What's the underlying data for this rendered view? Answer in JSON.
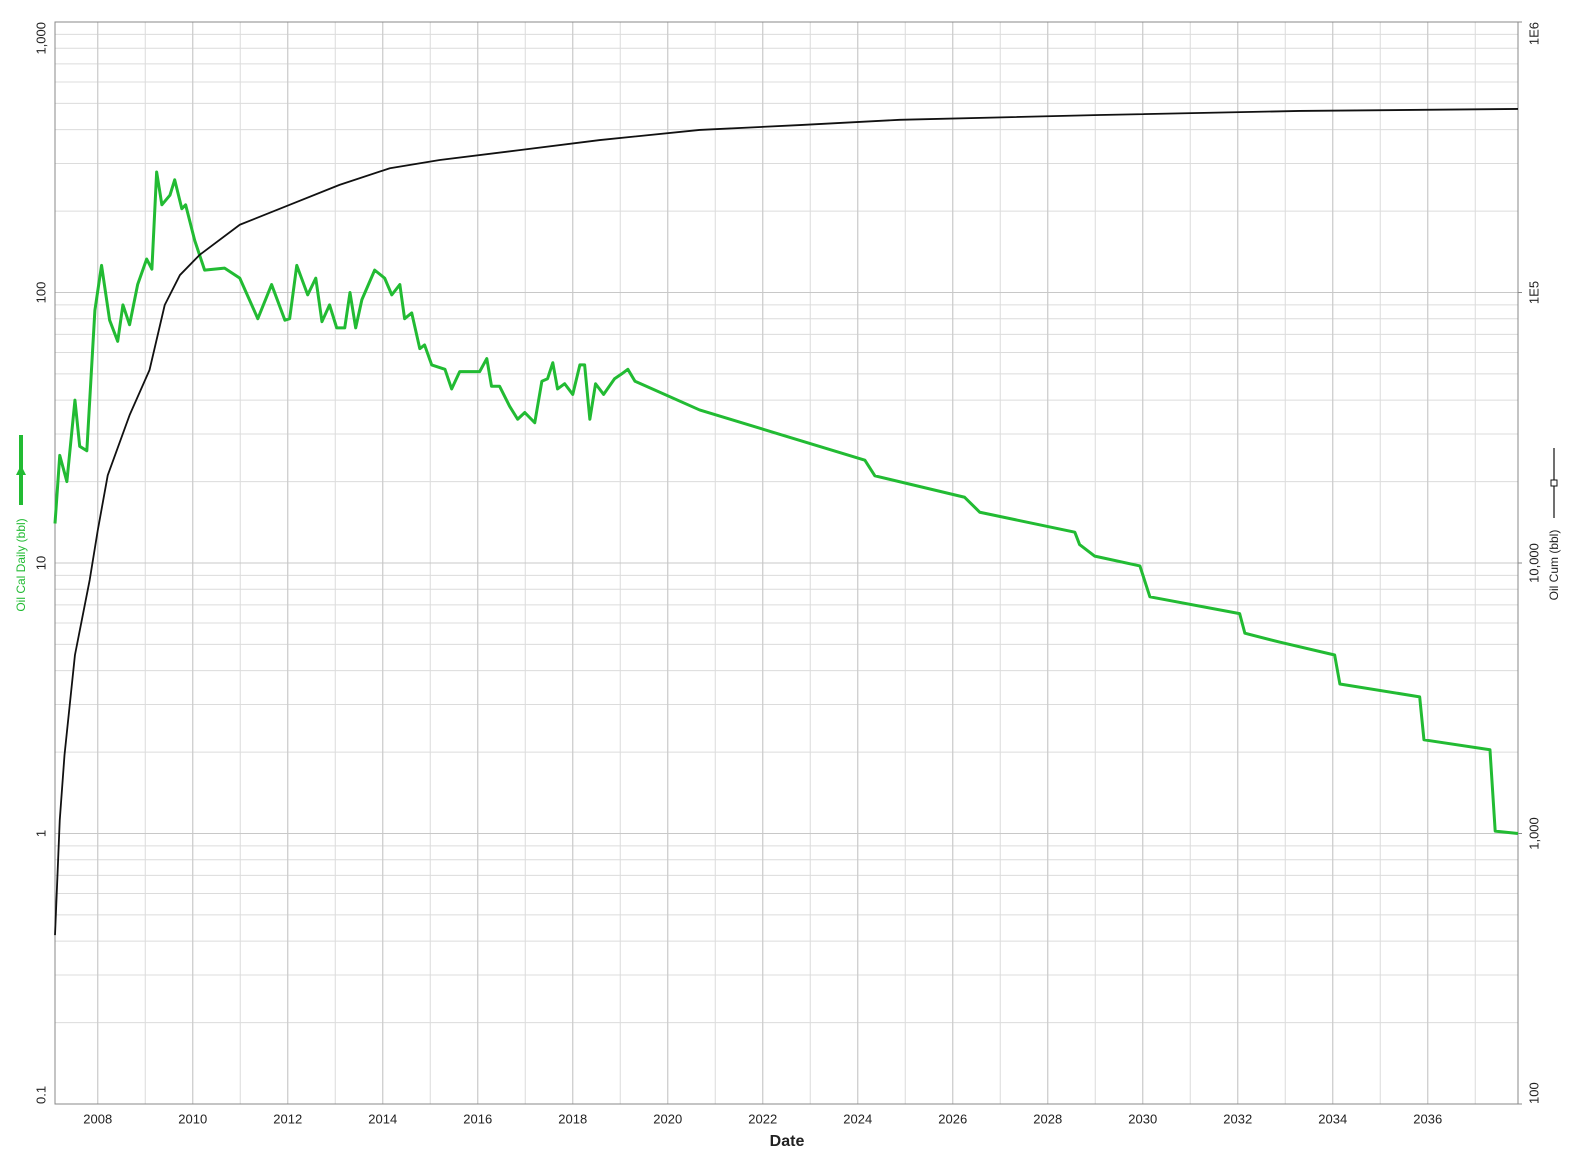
{
  "chart_data": {
    "type": "line",
    "x_label": "Date",
    "y_log": true,
    "y2_log": true,
    "grid": true,
    "minor_grid": true,
    "xlim": [
      2007.1,
      2037.9
    ],
    "xticks": [
      2008,
      2010,
      2012,
      2014,
      2016,
      2018,
      2020,
      2022,
      2024,
      2026,
      2028,
      2030,
      2032,
      2034,
      2036
    ],
    "ylim": [
      0.1,
      1000
    ],
    "yticks": [
      0.1,
      1,
      10,
      100,
      {
        "value": 1000,
        "label": "1,000"
      }
    ],
    "y2lim": [
      100,
      1000000
    ],
    "y2ticks": [
      100,
      {
        "value": 1000,
        "label": "1,000"
      },
      {
        "value": 10000,
        "label": "10,000"
      },
      {
        "value": 100000,
        "label": "1E5"
      },
      {
        "value": 1000000,
        "label": "1E6"
      }
    ],
    "series": [
      {
        "name": "Oil Cal Daily (bbl)",
        "color": "#22bb33",
        "axis": "y",
        "x": [
          2007.1,
          2007.2,
          2007.35,
          2007.52,
          2007.62,
          2007.77,
          2007.94,
          2008.08,
          2008.25,
          2008.42,
          2008.53,
          2008.67,
          2008.84,
          2009.03,
          2009.14,
          2009.24,
          2009.35,
          2009.52,
          2009.62,
          2009.77,
          2009.85,
          2010.04,
          2010.25,
          2010.67,
          2010.99,
          2011.37,
          2011.66,
          2011.94,
          2012.04,
          2012.19,
          2012.42,
          2012.59,
          2012.72,
          2012.88,
          2013.03,
          2013.2,
          2013.31,
          2013.43,
          2013.56,
          2013.83,
          2014.04,
          2014.19,
          2014.36,
          2014.46,
          2014.61,
          2014.78,
          2014.88,
          2015.03,
          2015.31,
          2015.45,
          2015.62,
          2016.04,
          2016.19,
          2016.29,
          2016.46,
          2016.67,
          2016.84,
          2016.99,
          2017.2,
          2017.35,
          2017.47,
          2017.58,
          2017.68,
          2017.83,
          2018.0,
          2018.15,
          2018.25,
          2018.36,
          2018.48,
          2018.65,
          2018.88,
          2019.03,
          2019.16,
          2019.31,
          2020.67,
          2024.15,
          2024.36,
          2026.25,
          2026.57,
          2028.57,
          2028.67,
          2028.99,
          2029.94,
          2030.15,
          2032.04,
          2032.15,
          2032.88,
          2034.04,
          2034.15,
          2035.83,
          2035.92,
          2037.31,
          2037.42,
          2037.9
        ],
        "values": [
          14,
          25,
          20,
          40,
          27,
          26,
          86,
          126,
          79,
          66,
          90,
          76,
          107,
          133,
          122,
          279,
          211,
          229,
          261,
          204,
          211,
          156,
          121,
          123,
          113,
          80,
          107,
          79,
          80,
          126,
          98,
          113,
          78,
          90,
          74,
          74,
          100,
          74,
          94,
          121,
          113,
          98,
          107,
          80,
          84,
          62,
          64,
          54,
          52,
          44,
          51,
          51,
          57,
          45,
          45,
          38,
          34,
          36,
          33,
          47,
          48,
          55,
          44,
          46,
          42,
          54,
          54,
          34,
          46,
          42,
          48,
          50,
          52,
          47,
          36.8,
          24,
          21,
          17.5,
          15.4,
          13,
          11.7,
          10.6,
          9.75,
          7.5,
          6.5,
          5.5,
          5.1,
          4.57,
          3.57,
          3.2,
          2.22,
          2.04,
          1.02,
          1.0
        ]
      },
      {
        "name": "Oil Cum (bbl)",
        "color": "#111111",
        "axis": "y2",
        "x": [
          2007.1,
          2007.2,
          2007.3,
          2007.52,
          2007.83,
          2008.0,
          2008.21,
          2008.67,
          2009.09,
          2009.41,
          2009.73,
          2010.15,
          2010.99,
          2012.04,
          2013.09,
          2014.15,
          2015.2,
          2016.88,
          2018.57,
          2020.67,
          2022.78,
          2024.88,
          2029.09,
          2033.3,
          2037.9
        ],
        "values": [
          421,
          1120,
          1950,
          4570,
          8650,
          13200,
          21100,
          35200,
          51700,
          89900,
          116000,
          138000,
          178000,
          211000,
          250000,
          288000,
          309000,
          336000,
          366000,
          399000,
          416000,
          435000,
          453000,
          469000,
          477000
        ]
      }
    ]
  }
}
